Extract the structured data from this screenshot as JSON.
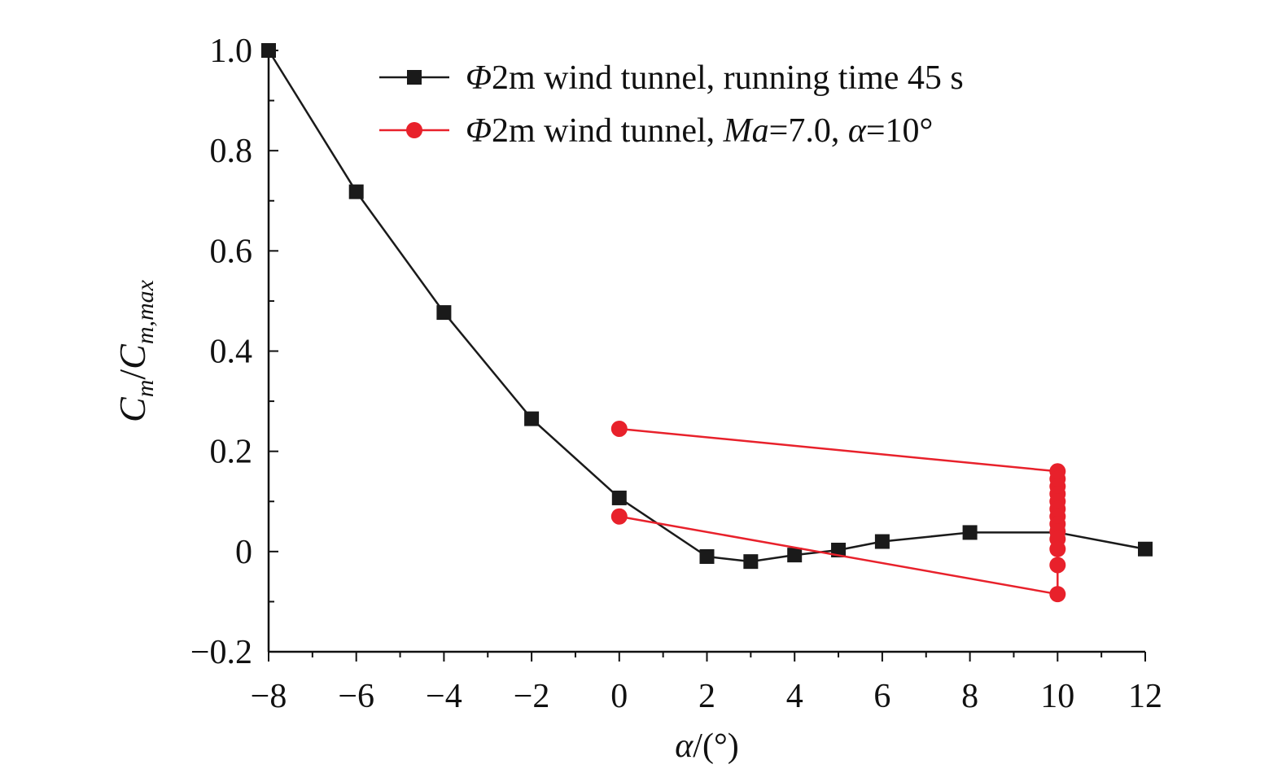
{
  "chart_data": {
    "type": "line",
    "title": "",
    "xlabel": {
      "symbol": "α",
      "unit": "/(°)"
    },
    "ylabel": {
      "num": "C",
      "num_sub": "m",
      "slash": "/",
      "den": "C",
      "den_sub": "m,max"
    },
    "xlim": [
      -8,
      12
    ],
    "ylim": [
      -0.2,
      1.0
    ],
    "xticks": [
      -8,
      -6,
      -4,
      -2,
      0,
      2,
      4,
      6,
      8,
      10,
      12
    ],
    "xtick_labels": [
      "−8",
      "−6",
      "−4",
      "−2",
      "0",
      "2",
      "4",
      "6",
      "8",
      "10",
      "12"
    ],
    "yticks": [
      -0.2,
      0,
      0.2,
      0.4,
      0.6,
      0.8,
      1.0
    ],
    "ytick_labels": [
      "−0.2",
      "0",
      "0.2",
      "0.4",
      "0.6",
      "0.8",
      "1.0"
    ],
    "legend_position": "top-right",
    "series": [
      {
        "name": "Φ2m wind tunnel, running time 45 s",
        "legend": {
          "sym": "Φ",
          "rest": "2m wind tunnel, running time 45 s"
        },
        "color": "#1a1a1a",
        "marker": "square",
        "points": [
          [
            -8,
            1.0
          ],
          [
            -6,
            0.718
          ],
          [
            -4,
            0.477
          ],
          [
            -2,
            0.265
          ],
          [
            0,
            0.107
          ],
          [
            2,
            -0.01
          ],
          [
            3,
            -0.02
          ],
          [
            4,
            -0.007
          ],
          [
            5,
            0.003
          ],
          [
            6,
            0.02
          ],
          [
            8,
            0.038
          ],
          [
            10,
            0.038
          ],
          [
            12,
            0.005
          ]
        ]
      },
      {
        "name": "Φ2m wind tunnel, Ma=7.0, α=10°",
        "legend": {
          "sym": "Φ",
          "part1": "2m wind tunnel, ",
          "ma": "Ma",
          "part2": "=7.0, ",
          "alpha": "α",
          "part3": "=10°"
        },
        "color": "#e8212b",
        "marker": "circle",
        "points": [
          [
            0,
            0.245
          ],
          [
            10,
            0.16
          ],
          [
            10,
            0.145
          ],
          [
            10,
            0.13
          ],
          [
            10,
            0.115
          ],
          [
            10,
            0.1
          ],
          [
            10,
            0.085
          ],
          [
            10,
            0.07
          ],
          [
            10,
            0.055
          ],
          [
            10,
            0.04
          ],
          [
            10,
            0.025
          ],
          [
            10,
            0.005
          ],
          [
            10,
            -0.027
          ],
          [
            10,
            -0.085
          ],
          [
            0,
            0.07
          ]
        ]
      }
    ]
  }
}
